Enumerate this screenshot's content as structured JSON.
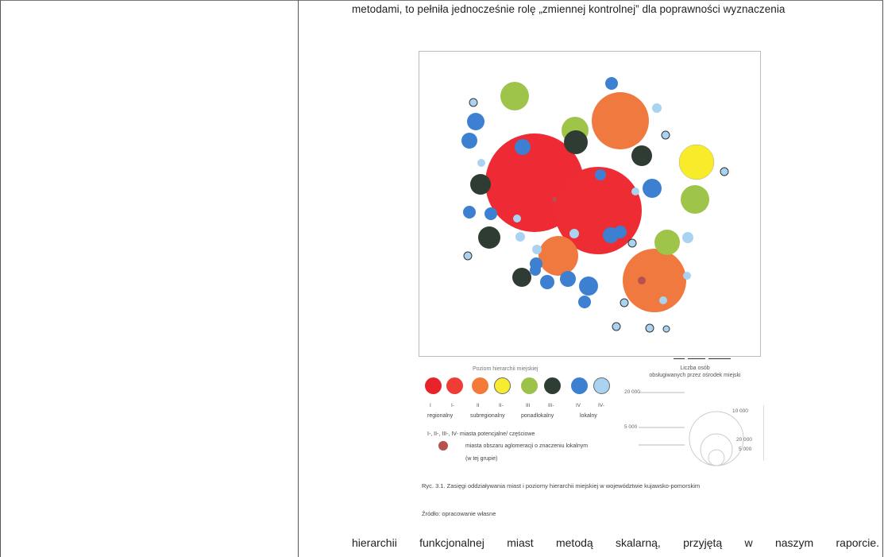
{
  "text": {
    "top_line": "metodami, to pełniła jednocześnie rolę „zmiennej kontrolnej” dla poprawności wyznaczenia",
    "bottom_line": "hierarchii funkcjonalnej miast metodą skalarną, przyjętą w naszym raporcie."
  },
  "legend": {
    "category_title": "Poziom hierarchii miejskiej",
    "categories": [
      {
        "code": "I",
        "color": "#e8232c"
      },
      {
        "code": "I-",
        "color": "#ef3d35"
      },
      {
        "code": "II",
        "color": "#f47a3a"
      },
      {
        "code": "II-",
        "color": "#f7ec2f"
      },
      {
        "code": "III",
        "color": "#9cc24a"
      },
      {
        "code": "III-",
        "color": "#2f3e35"
      },
      {
        "code": "IV",
        "color": "#3d7fd0"
      },
      {
        "code": "IV-",
        "color": "#a9d3f0"
      }
    ],
    "names": [
      "regionalny",
      "subregionalny",
      "ponadlokalny",
      "lokalny"
    ],
    "note1": "I-, II-, III-, IV- miasta potencjalne/ częściowe",
    "note2": "miasta obszaru aglomeracji o znaczeniu lokalnym",
    "note3": "(w tej grupie)",
    "size_title": "Liczba osób",
    "size_subtitle": "obsługiwanych przez ośrodek miejski",
    "size_values": [
      "20 000",
      "10 000",
      "5 000",
      "20 000",
      "5 000"
    ]
  },
  "caption": "Ryc. 3.1. Zasięgi oddziaływania miast i poziomy hierarchii miejskiej w województwie kujawsko-pomorskim",
  "source": "Źródło: opracowanie własne"
}
